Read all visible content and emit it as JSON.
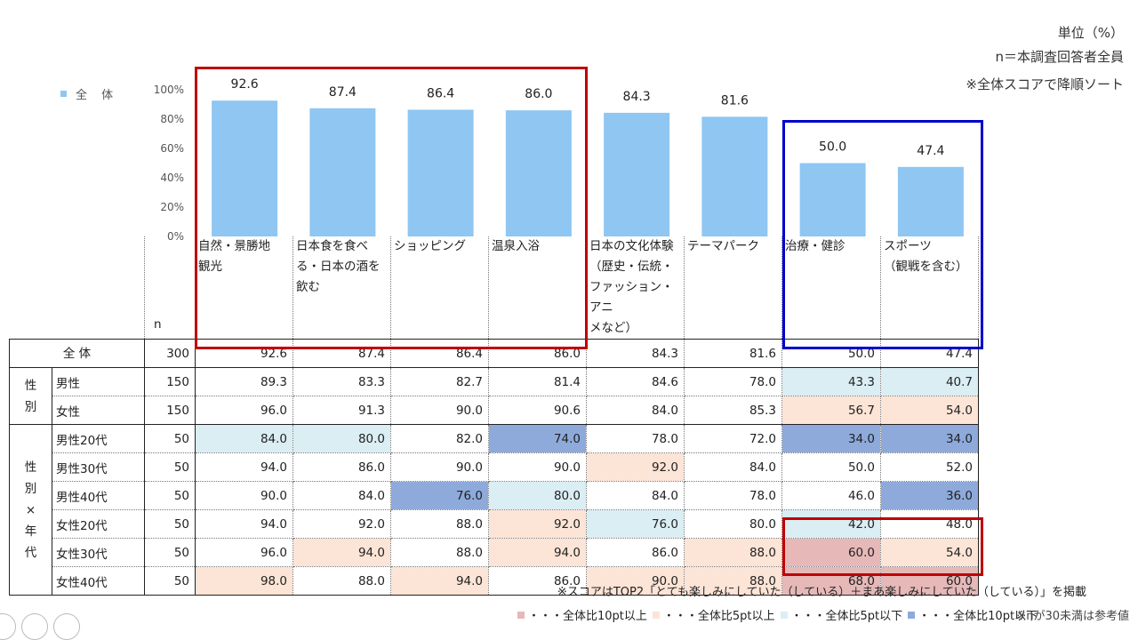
{
  "notes": {
    "unit": "単位（%）",
    "n": "n＝本調査回答者全員",
    "sort": "※全体スコアで降順ソート"
  },
  "legend": {
    "label": "全 体",
    "color": "#8fc6f2"
  },
  "chart_data": {
    "type": "bar",
    "categories": [
      "自然・景勝地観光",
      "日本食を食べる・日本の酒を飲む",
      "ショッピング",
      "温泉入浴",
      "日本の文化体験（歴史・伝統・ファッション・アニメなど）",
      "テーマパーク",
      "治療・健診",
      "スポーツ（観戦を含む）"
    ],
    "values": [
      92.6,
      87.4,
      86.4,
      86.0,
      84.3,
      81.6,
      50.0,
      47.4
    ],
    "value_labels": [
      "92.6",
      "87.4",
      "86.4",
      "86.0",
      "84.3",
      "81.6",
      "50.0",
      "47.4"
    ],
    "y_ticks": [
      "100%",
      "80%",
      "60%",
      "40%",
      "20%",
      "0%"
    ],
    "ylim": [
      0,
      100
    ],
    "series_name": "全 体",
    "bar_color": "#8fc6f2",
    "grid": false
  },
  "table": {
    "n_header": "n",
    "headers": [
      "自然・景勝地\n観光",
      "日本食を食べ\nる・日本の酒を\n飲む",
      "ショッピング",
      "温泉入浴",
      "日本の文化体験\n（歴史・伝統・\nファッション・アニ\nメなど）",
      "テーマパーク",
      "治療・健診",
      "スポーツ\n（観戦を含む）"
    ],
    "total_row": {
      "label": "全 体",
      "n": "300",
      "values": [
        "92.6",
        "87.4",
        "86.4",
        "86.0",
        "84.3",
        "81.6",
        "50.0",
        "47.4"
      ]
    },
    "groups": [
      {
        "label": "性\n別",
        "rows": [
          {
            "label": "男性",
            "n": "150",
            "values": [
              "89.3",
              "83.3",
              "82.7",
              "81.4",
              "84.6",
              "78.0",
              "43.3",
              "40.7"
            ],
            "cls": [
              "",
              "",
              "",
              "",
              "",
              "",
              "lb",
              "lb"
            ]
          },
          {
            "label": "女性",
            "n": "150",
            "values": [
              "96.0",
              "91.3",
              "90.0",
              "90.6",
              "84.0",
              "85.3",
              "56.7",
              "54.0"
            ],
            "cls": [
              "",
              "",
              "",
              "",
              "",
              "",
              "o",
              "o"
            ]
          }
        ]
      },
      {
        "label": "性\n別\n×\n年\n代",
        "rows": [
          {
            "label": "男性20代",
            "n": "50",
            "values": [
              "84.0",
              "80.0",
              "82.0",
              "74.0",
              "78.0",
              "72.0",
              "34.0",
              "34.0"
            ],
            "cls": [
              "lb",
              "lb",
              "",
              "b",
              "",
              "",
              "b",
              "b"
            ]
          },
          {
            "label": "男性30代",
            "n": "50",
            "values": [
              "94.0",
              "86.0",
              "90.0",
              "90.0",
              "92.0",
              "84.0",
              "50.0",
              "52.0"
            ],
            "cls": [
              "",
              "",
              "",
              "",
              "o",
              "",
              "",
              ""
            ]
          },
          {
            "label": "男性40代",
            "n": "50",
            "values": [
              "90.0",
              "84.0",
              "76.0",
              "80.0",
              "84.0",
              "78.0",
              "46.0",
              "36.0"
            ],
            "cls": [
              "",
              "",
              "b",
              "lb",
              "",
              "",
              "",
              "b"
            ]
          },
          {
            "label": "女性20代",
            "n": "50",
            "values": [
              "94.0",
              "92.0",
              "88.0",
              "92.0",
              "76.0",
              "80.0",
              "42.0",
              "48.0"
            ],
            "cls": [
              "",
              "",
              "",
              "o",
              "lb",
              "",
              "lb",
              ""
            ]
          },
          {
            "label": "女性30代",
            "n": "50",
            "values": [
              "96.0",
              "94.0",
              "88.0",
              "94.0",
              "86.0",
              "88.0",
              "60.0",
              "54.0"
            ],
            "cls": [
              "",
              "o",
              "",
              "o",
              "",
              "o",
              "r",
              "o"
            ]
          },
          {
            "label": "女性40代",
            "n": "50",
            "values": [
              "98.0",
              "88.0",
              "94.0",
              "86.0",
              "90.0",
              "88.0",
              "68.0",
              "60.0"
            ],
            "cls": [
              "o",
              "",
              "o",
              "",
              "o",
              "o",
              "r",
              "r"
            ]
          }
        ]
      }
    ]
  },
  "colors": {
    "red_cell": "#e6b8b8",
    "orange_cell": "#fce4d6",
    "lightblue_cell": "#daeef3",
    "blue_cell": "#8eaadb",
    "red_frame": "#c00000",
    "blue_frame": "#0000cc"
  },
  "footer": {
    "score_note": "※スコアはTOP2「とても楽しみにしていた（している）＋まあ楽しみにしていた（している）」を掲載",
    "legend_items": [
      {
        "text": "・・・全体比10pt以上",
        "color": "#e6b8b8"
      },
      {
        "text": "・・・全体比5pt以上",
        "color": "#fce4d6"
      },
      {
        "text": "・・・全体比5pt以下",
        "color": "#daeef3"
      },
      {
        "text": "・・・全体比10pt以下",
        "color": "#8eaadb"
      }
    ],
    "n_note": "※nが30未満は参考値"
  }
}
